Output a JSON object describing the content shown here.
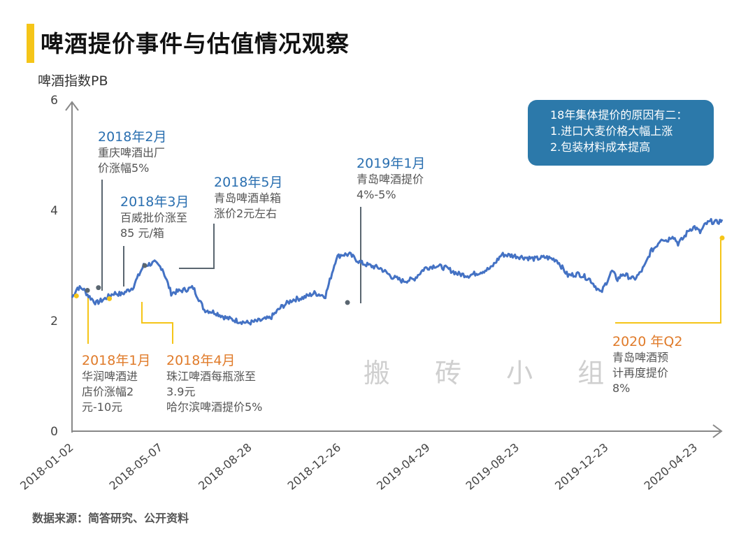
{
  "title": "啤酒提价事件与估值情况观察",
  "source": "数据来源：简答研究、公开资料",
  "watermark": "搬 砖 小 组",
  "info_box": {
    "line1": "18年集体提价的原因有二：",
    "line2": "1.进口大麦价格大幅上涨",
    "line3": "2.包装材料成本提高"
  },
  "annotations": {
    "feb2018": {
      "head": "2018年2月",
      "line1": "重庆啤酒出厂",
      "line2": "价涨幅5%"
    },
    "mar2018": {
      "head": "2018年3月",
      "line1": "百威批价涨至",
      "line2": "85 元/箱"
    },
    "may2018": {
      "head": "2018年5月",
      "line1": "青岛啤酒单箱",
      "line2": "涨价2元左右"
    },
    "jan2019": {
      "head": "2019年1月",
      "line1": "青岛啤酒提价",
      "line2": "4%-5%"
    },
    "jan2018": {
      "head": "2018年1月",
      "line1": "华润啤酒进",
      "line2": "店价涨幅2",
      "line3": "元-10元"
    },
    "apr2018": {
      "head": "2018年4月",
      "line1": "珠江啤酒每瓶涨至",
      "line2": "3.9元",
      "line3": "哈尔滨啤酒提价5%"
    },
    "q2_2020": {
      "head": "2020 年Q2",
      "line1": "青岛啤酒预",
      "line2": "计再度提价",
      "line3": "8%"
    }
  },
  "colors": {
    "line": "#4472c4",
    "blue_note": "#2a6fb0",
    "orange_note": "#e07b2a",
    "yellow_marker": "#f5c518",
    "gray_marker": "#5a6670",
    "axis": "#888888"
  },
  "chart_data": {
    "type": "line",
    "title": "啤酒提价事件与估值情况观察",
    "ylabel": "啤酒指数PB",
    "xlabel": "",
    "ylim": [
      0,
      6
    ],
    "yticks": [
      "0",
      "2",
      "4",
      "6"
    ],
    "x_tick_labels": [
      "2018-01-02",
      "2018-05-07",
      "2018-08-28",
      "2018-12-26",
      "2019-04-29",
      "2019-08-23",
      "2019-12-23",
      "2020-04-23"
    ],
    "series": [
      {
        "name": "啤酒指数PB",
        "x_index": [
          0,
          5,
          10,
          15,
          22,
          30,
          38,
          45,
          55,
          65,
          75,
          82,
          90,
          100,
          110,
          120,
          130,
          140,
          150,
          160,
          170,
          180,
          190,
          200,
          210,
          220,
          230,
          240,
          245,
          252,
          262,
          270,
          280,
          290,
          300,
          310,
          320,
          330,
          340,
          350,
          360,
          370,
          380,
          390,
          400,
          410,
          420,
          430,
          440,
          450,
          460,
          470,
          480,
          490,
          495,
          500,
          505,
          510,
          515,
          520,
          525,
          530,
          535,
          540,
          545,
          550,
          555,
          560,
          565,
          570,
          575,
          580,
          585,
          590
        ],
        "values": [
          2.42,
          2.6,
          2.58,
          2.45,
          2.32,
          2.4,
          2.5,
          2.48,
          2.6,
          3.0,
          3.05,
          2.95,
          2.5,
          2.55,
          2.6,
          2.2,
          2.15,
          2.05,
          2.0,
          1.96,
          2.0,
          2.05,
          2.25,
          2.38,
          2.42,
          2.5,
          2.45,
          3.15,
          3.2,
          3.2,
          3.05,
          3.0,
          2.95,
          2.8,
          2.72,
          2.75,
          2.95,
          3.0,
          2.95,
          2.85,
          2.82,
          2.88,
          2.95,
          3.2,
          3.18,
          3.15,
          3.12,
          3.15,
          3.1,
          2.82,
          2.85,
          2.75,
          2.5,
          2.9,
          2.75,
          2.85,
          2.8,
          2.75,
          2.85,
          3.0,
          3.25,
          3.35,
          3.5,
          3.45,
          3.55,
          3.4,
          3.5,
          3.65,
          3.7,
          3.6,
          3.75,
          3.8,
          3.78,
          3.82
        ]
      }
    ],
    "event_markers": [
      {
        "label": "2018年1月",
        "x_index": 4,
        "value": 2.45,
        "kind": "orange"
      },
      {
        "label": "2018年2月",
        "x_index": 14,
        "value": 2.55,
        "kind": "blue"
      },
      {
        "label": "2018年3月",
        "x_index": 24,
        "value": 2.6,
        "kind": "blue"
      },
      {
        "label": "2018年4月",
        "x_index": 34,
        "value": 2.4,
        "kind": "orange"
      },
      {
        "label": "2018年5月",
        "x_index": 66,
        "value": 3.0,
        "kind": "blue"
      },
      {
        "label": "2019年1月",
        "x_index": 250,
        "value": 2.33,
        "kind": "blue"
      },
      {
        "label": "2020 年Q2",
        "x_index": 590,
        "value": 3.5,
        "kind": "orange"
      }
    ],
    "x_count": 591
  }
}
